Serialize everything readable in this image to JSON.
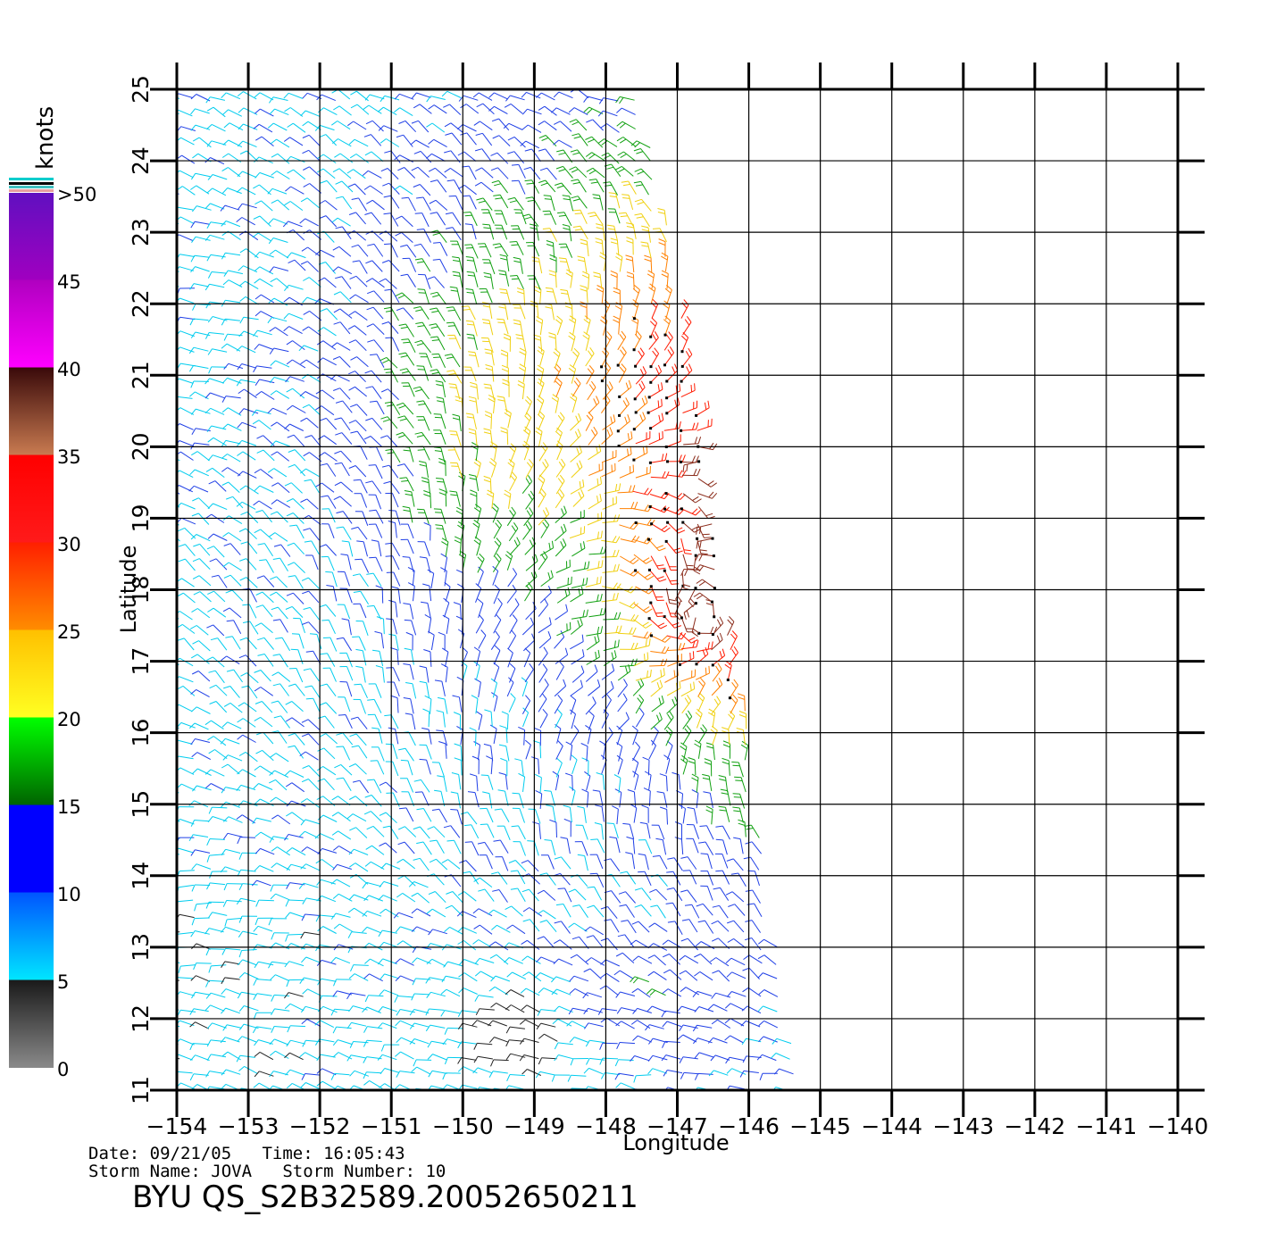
{
  "chart_data": {
    "type": "wind-barb-map",
    "xlabel": "Longitude",
    "ylabel": "Latitude",
    "xlim": [
      -154,
      -140
    ],
    "ylim": [
      11,
      25
    ],
    "x_ticks": [
      -154,
      -153,
      -152,
      -151,
      -150,
      -149,
      -148,
      -147,
      -146,
      -145,
      -144,
      -143,
      -142,
      -141,
      -140
    ],
    "x_tick_labels": [
      "−154",
      "−153",
      "−152",
      "−151",
      "−150",
      "−149",
      "−148",
      "−147",
      "−146",
      "−145",
      "−144",
      "−143",
      "−142",
      "−141",
      "−140"
    ],
    "y_ticks": [
      11,
      12,
      13,
      14,
      15,
      16,
      17,
      18,
      19,
      20,
      21,
      22,
      23,
      24,
      25
    ],
    "y_tick_labels": [
      "11",
      "12",
      "13",
      "14",
      "15",
      "16",
      "17",
      "18",
      "19",
      "20",
      "21",
      "22",
      "23",
      "24",
      "25"
    ],
    "grid": true,
    "colorbar": {
      "title": "knots",
      "labels": [
        "0",
        "5",
        "10",
        "15",
        "20",
        "25",
        "30",
        "35",
        "40",
        "45",
        ">50"
      ],
      "levels": [
        0,
        5,
        10,
        15,
        20,
        25,
        30,
        35,
        40,
        45,
        50
      ]
    },
    "swath": {
      "east_edge": [
        [
          -145.3,
          11
        ],
        [
          -145.9,
          15
        ],
        [
          -146.0,
          16
        ],
        [
          -146.2,
          17
        ],
        [
          -146.5,
          19
        ],
        [
          -147.1,
          23
        ],
        [
          -147.5,
          25
        ]
      ],
      "west_edge_lon": -154,
      "storm_center": [
        -146.7,
        17.6
      ]
    },
    "wind_speed_regions_knots": [
      {
        "region": "west & south background",
        "speed": "5-15"
      },
      {
        "region": "central band 19-23N, 151-149W",
        "speed": "15-25"
      },
      {
        "region": "near 12N, 150-148W",
        "speed": "0-5"
      },
      {
        "region": "storm core east edge 16-21N",
        "speed": "30-50"
      }
    ]
  },
  "footer": {
    "date_line": "Date: 09/21/05   Time: 16:05:43",
    "storm_line": "Storm Name: JOVA   Storm Number: 10",
    "product_id": "BYU QS_S2B32589.20052650211"
  }
}
